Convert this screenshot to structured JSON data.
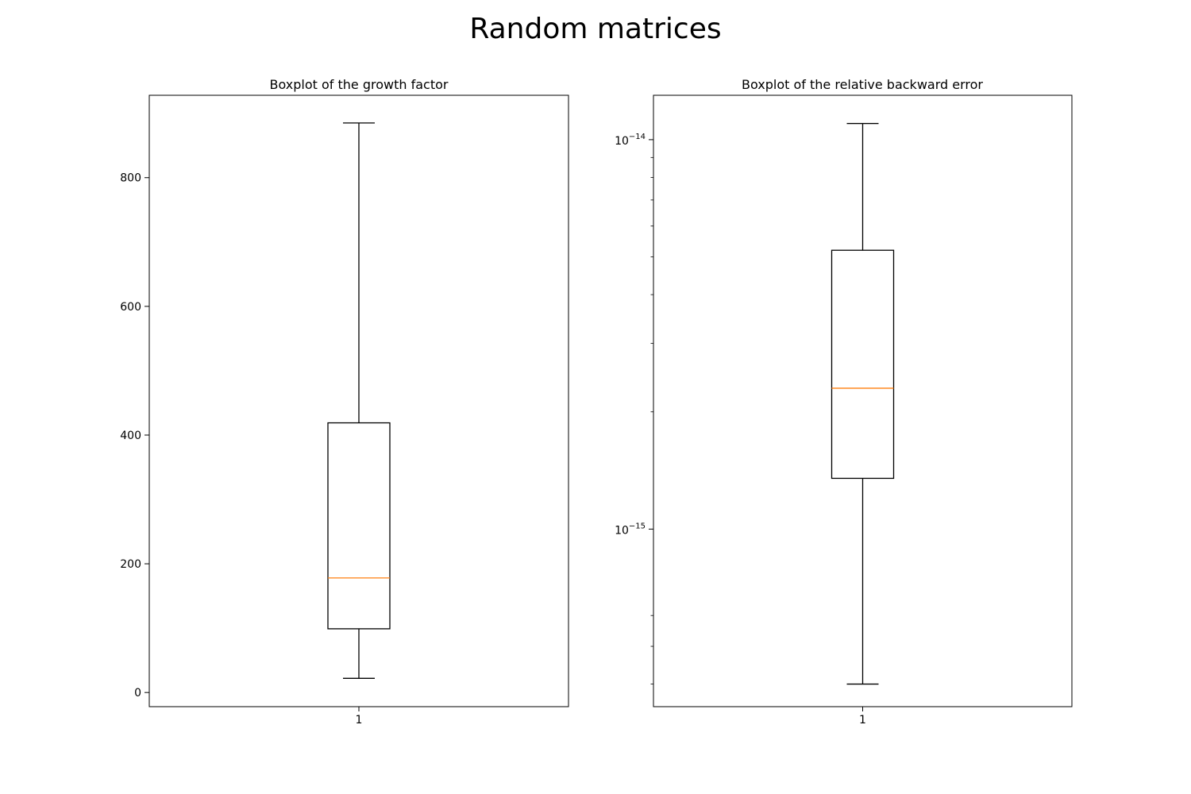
{
  "figure": {
    "title": "Random matrices"
  },
  "chart_data": [
    {
      "type": "boxplot",
      "title": "Boxplot of the growth factor",
      "xlabel": "",
      "ylabel": "",
      "yscale": "linear",
      "ylim": [
        -22,
        928
      ],
      "yticks": [
        0,
        200,
        400,
        600,
        800
      ],
      "ytick_labels": [
        "0",
        "200",
        "400",
        "600",
        "800"
      ],
      "categories": [
        "1"
      ],
      "box": {
        "whisker_low": 22,
        "q1": 99,
        "median": 178,
        "q3": 419,
        "whisker_high": 885
      },
      "colors": {
        "box": "#000000",
        "median": "#ff7f0e"
      }
    },
    {
      "type": "boxplot",
      "title": "Boxplot of the relative backward error",
      "xlabel": "",
      "ylabel": "",
      "yscale": "log",
      "ylim": [
        3.5e-16,
        1.3e-14
      ],
      "yticks_major": [
        1e-15,
        1e-14
      ],
      "ytick_labels": [
        {
          "base": "10",
          "exponent": "−15"
        },
        {
          "base": "10",
          "exponent": "−14"
        }
      ],
      "yticks_minor": [
        4e-16,
        5e-16,
        6e-16,
        2e-15,
        3e-15,
        4e-15,
        5e-15,
        6e-15,
        7e-15,
        8e-15,
        9e-15
      ],
      "categories": [
        "1"
      ],
      "box": {
        "whisker_low": 4e-16,
        "q1": 1.35e-15,
        "median": 2.3e-15,
        "q3": 5.2e-15,
        "whisker_high": 1.1e-14
      },
      "colors": {
        "box": "#000000",
        "median": "#ff7f0e"
      }
    }
  ]
}
